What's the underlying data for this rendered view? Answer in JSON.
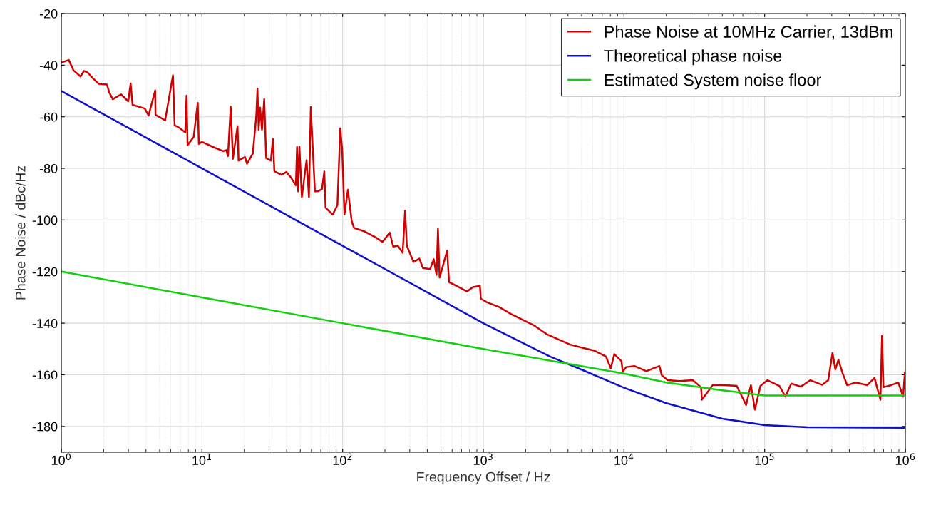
{
  "chart_data": {
    "type": "line",
    "xlabel": "Frequency Offset / Hz",
    "ylabel": "Phase Noise / dBc/Hz",
    "log": "x",
    "grid": true,
    "legend": "top right",
    "line_style": "solid",
    "marker": "none",
    "xlim": [
      1,
      1000000
    ],
    "ylim": [
      -190,
      -20
    ],
    "xticks": [
      {
        "value": 1,
        "label": "10$^{0}$"
      },
      {
        "value": 10,
        "label": "10$^{1}$"
      },
      {
        "value": 100,
        "label": "10$^{2}$"
      },
      {
        "value": 1000,
        "label": "10$^{3}$"
      },
      {
        "value": 10000,
        "label": "10$^{4}$"
      },
      {
        "value": 100000,
        "label": "10$^{5}$"
      },
      {
        "value": 1000000,
        "label": "10$^{6}$"
      }
    ],
    "yticks": [
      -180,
      -160,
      -140,
      -120,
      -100,
      -80,
      -60,
      -40,
      -20
    ],
    "series": [
      {
        "name": "Phase Noise at 10MHz Carrier, 13dBm",
        "color": "#d00000",
        "x": [
          1,
          1.13,
          1.22,
          1.37,
          1.45,
          1.55,
          1.67,
          1.84,
          2.11,
          2.19,
          2.32,
          2.66,
          2.99,
          3.11,
          3.21,
          3.92,
          4.17,
          4.65,
          4.67,
          5.47,
          6.22,
          6.39,
          6.92,
          7.6,
          7.77,
          7.9,
          8.73,
          9.33,
          9.5,
          10,
          12.2,
          14.2,
          14.9,
          15.3,
          16,
          16.6,
          17.9,
          18.2,
          20.2,
          20.9,
          23,
          24.3,
          24.8,
          25.3,
          25.9,
          26.7,
          27.7,
          28.6,
          30.9,
          31.9,
          32.7,
          36.8,
          39.8,
          43,
          46.5,
          47.4,
          48.3,
          49.3,
          51.3,
          55.4,
          57.6,
          59.4,
          61.1,
          63.5,
          67.3,
          71.3,
          74.1,
          75.6,
          84.9,
          91.8,
          96.2,
          99.3,
          103,
          109,
          116,
          120.6,
          141,
          171,
          192,
          216,
          229,
          247,
          267,
          278,
          286,
          319,
          351,
          372,
          419,
          444,
          465,
          476,
          489,
          553,
          571,
          642,
          766,
          844,
          946,
          960,
          1063,
          1294,
          1570,
          1907,
          2316,
          2815,
          3420,
          4152,
          5045,
          6124,
          7446,
          8052,
          8538,
          9593,
          9800,
          10360,
          11870,
          14420,
          17850,
          18570,
          20470,
          24880,
          30820,
          35300,
          35800,
          42860,
          52020,
          63230,
          73830,
          79830,
          85300,
          93300,
          104800,
          127300,
          140300,
          154700,
          180700,
          211200,
          256600,
          283000,
          303600,
          318000,
          334300,
          357500,
          385900,
          441800,
          537100,
          603700,
          665600,
          682900,
          699300,
          792600,
          891300,
          963400,
          993000
        ],
        "values": [
          -39,
          -38,
          -42,
          -44.4,
          -42.2,
          -43,
          -45,
          -47.2,
          -47.5,
          -50.5,
          -53.2,
          -51.3,
          -54,
          -47.1,
          -55.4,
          -56.8,
          -59.5,
          -49.8,
          -59.2,
          -61.4,
          -43.9,
          -63.3,
          -64.3,
          -66,
          -51.8,
          -71,
          -67.8,
          -54.6,
          -70.5,
          -69.7,
          -71.9,
          -73.3,
          -72.9,
          -75.2,
          -56.1,
          -76.3,
          -63.6,
          -77,
          -75.6,
          -78.2,
          -74.2,
          -60,
          -49.1,
          -65,
          -56.4,
          -65,
          -53.2,
          -76,
          -77,
          -68.6,
          -81.1,
          -82.5,
          -81.4,
          -83.6,
          -86.6,
          -71.6,
          -88.9,
          -71.6,
          -91.1,
          -76.8,
          -91.1,
          -56.2,
          -70.5,
          -88.9,
          -88.8,
          -88,
          -81.2,
          -95.2,
          -97.9,
          -94.3,
          -64.5,
          -72.9,
          -97.9,
          -88.3,
          -100.5,
          -103.1,
          -104.3,
          -106.7,
          -108.5,
          -104.9,
          -110.3,
          -110,
          -112.7,
          -96.4,
          -110,
          -116.3,
          -115,
          -118.6,
          -119,
          -115.2,
          -121.3,
          -103.5,
          -122.3,
          -111.9,
          -124.1,
          -125.5,
          -127.7,
          -126,
          -125.5,
          -130.5,
          -131.9,
          -133.7,
          -136.4,
          -138.7,
          -141,
          -144.2,
          -146.3,
          -148.3,
          -149.5,
          -150.6,
          -152.9,
          -157.5,
          -152,
          -154.7,
          -158.8,
          -157,
          -156.6,
          -158.6,
          -156.6,
          -160.2,
          -162.1,
          -162.4,
          -162.1,
          -164.8,
          -169.7,
          -163.9,
          -164,
          -164.3,
          -171.7,
          -164,
          -173.5,
          -164.3,
          -162.1,
          -164.3,
          -168.4,
          -163.4,
          -164.6,
          -162.1,
          -163.9,
          -162.1,
          -151.5,
          -157.9,
          -154.2,
          -159.3,
          -164,
          -163,
          -164,
          -161.2,
          -169.7,
          -144.9,
          -164.8,
          -164,
          -163,
          -168.4,
          -159.3
        ]
      },
      {
        "name": "Theoretical phase noise",
        "color": "#1010c8",
        "x": [
          1,
          10,
          100,
          1000,
          3000,
          5000,
          10000,
          20000,
          50000,
          100000,
          200000,
          1000000
        ],
        "values": [
          -50,
          -80,
          -110,
          -140,
          -153,
          -158,
          -165,
          -171,
          -177,
          -179.5,
          -180.3,
          -180.5
        ]
      },
      {
        "name": "Estimated System noise floor",
        "color": "#10d010",
        "x": [
          1,
          10,
          100,
          1000,
          10000,
          20000,
          50000,
          100000,
          1000000
        ],
        "values": [
          -120,
          -130,
          -140,
          -150,
          -159.5,
          -163,
          -166,
          -168,
          -168
        ]
      }
    ]
  }
}
